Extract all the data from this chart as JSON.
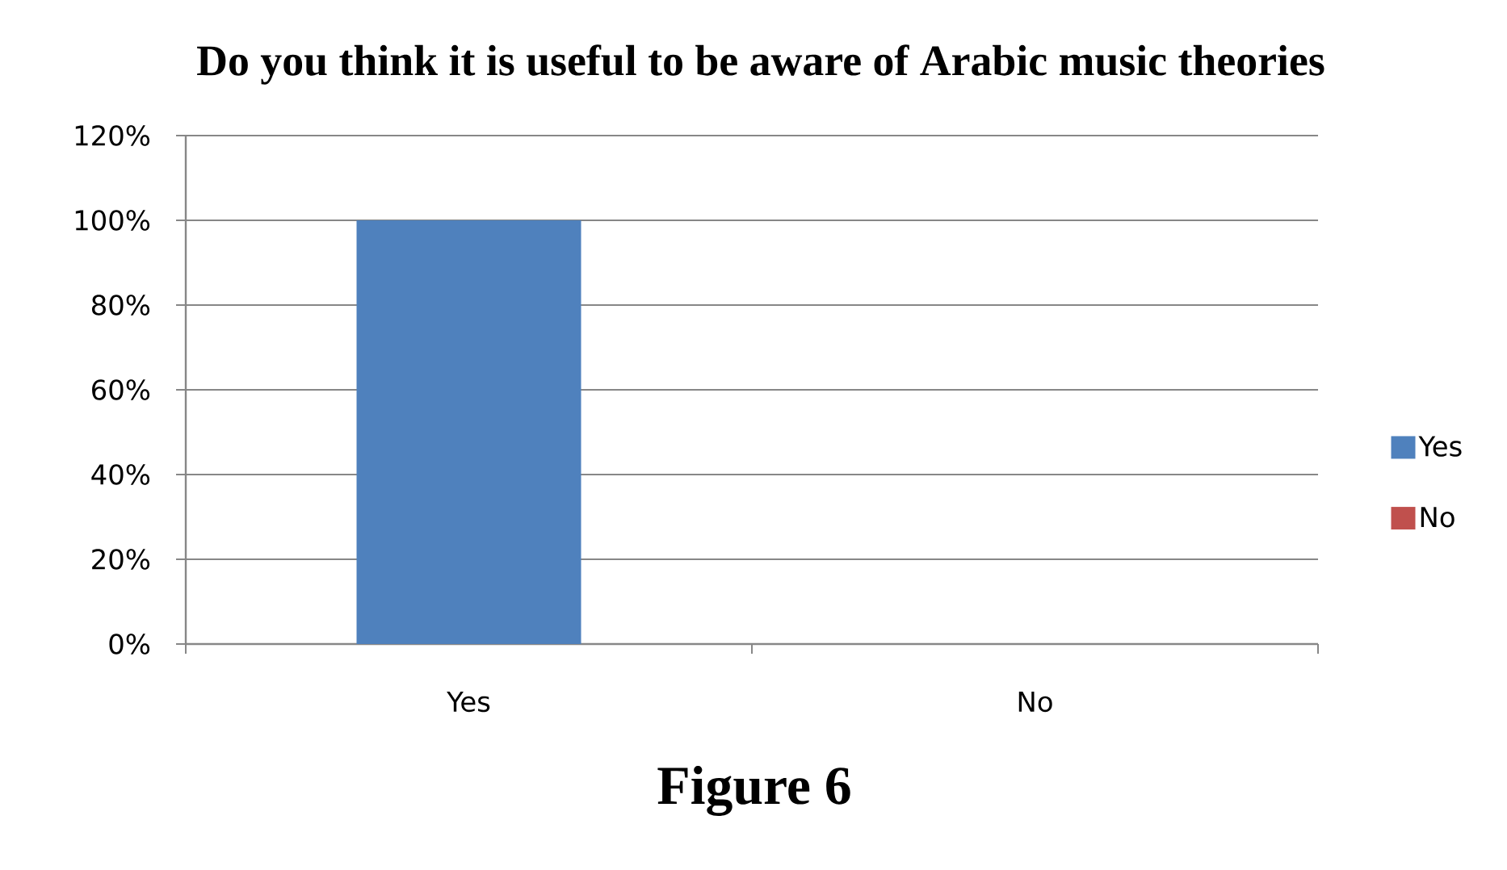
{
  "chart_data": {
    "type": "bar",
    "title": "Do you think it is useful to be aware of Arabic music theories",
    "categories": [
      "Yes",
      "No"
    ],
    "series": [
      {
        "name": "Yes",
        "color": "#4f81bd",
        "values": [
          100,
          null
        ]
      },
      {
        "name": "No",
        "color": "#c0504d",
        "values": [
          null,
          0
        ]
      }
    ],
    "ylim": [
      0,
      120
    ],
    "yticks": [
      {
        "value": 0,
        "label": "0%"
      },
      {
        "value": 20,
        "label": "20%"
      },
      {
        "value": 40,
        "label": "40%"
      },
      {
        "value": 60,
        "label": "60%"
      },
      {
        "value": 80,
        "label": "80%"
      },
      {
        "value": 100,
        "label": "100%"
      },
      {
        "value": 120,
        "label": "120%"
      }
    ],
    "grid": "y",
    "legend": "right",
    "annotations": [
      "**Figure 6**"
    ]
  }
}
